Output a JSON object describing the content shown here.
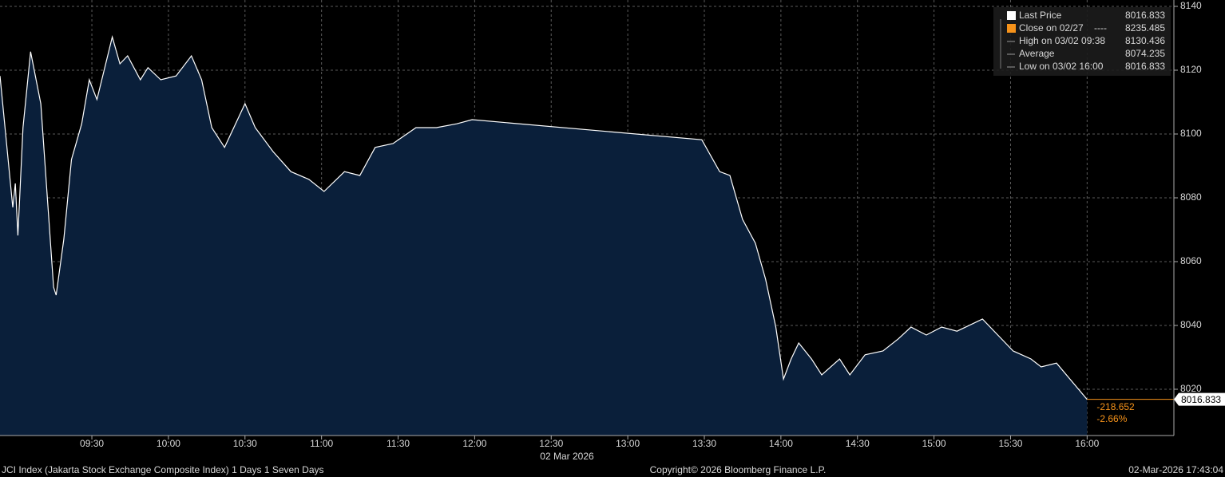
{
  "chart_data": {
    "type": "area",
    "title": "JCI Index (Jakarta Stock Exchange Composite Index) 1 Days 1 Seven Days",
    "credit": "Copyright© 2026 Bloomberg Finance L.P.",
    "timestamp": "02-Mar-2026 17:43:04",
    "x_label": "02 Mar 2026",
    "x": [
      "08:54",
      "08:59",
      "09:00",
      "09:01",
      "09:03",
      "09:06",
      "09:10",
      "09:15",
      "09:16",
      "09:19",
      "09:22",
      "09:26",
      "09:29",
      "09:32",
      "09:38",
      "09:41",
      "09:44",
      "09:49",
      "09:52",
      "09:57",
      "10:03",
      "10:09",
      "10:13",
      "10:17",
      "10:22",
      "10:30",
      "10:34",
      "10:41",
      "10:48",
      "10:55",
      "11:01",
      "11:09",
      "11:15",
      "11:21",
      "11:28",
      "11:37",
      "11:45",
      "11:53",
      "11:59",
      "13:29",
      "13:36",
      "13:40",
      "13:45",
      "13:50",
      "13:54",
      "13:58",
      "14:01",
      "14:04",
      "14:07",
      "14:12",
      "14:16",
      "14:23",
      "14:27",
      "14:33",
      "14:40",
      "14:46",
      "14:51",
      "14:57",
      "15:03",
      "15:09",
      "15:19",
      "15:25",
      "15:31",
      "15:38",
      "15:42",
      "15:48",
      "16:00"
    ],
    "series": [
      {
        "name": "Last Price",
        "color": "#ffffff",
        "fill": "#0a1f3a",
        "values": [
          8118.2,
          8077,
          8084.5,
          8068.2,
          8102,
          8125.8,
          8109.5,
          8052,
          8049.5,
          8067,
          8092,
          8103.2,
          8117,
          8110.8,
          8130.436,
          8122,
          8124.5,
          8117,
          8120.8,
          8117,
          8118.2,
          8124.5,
          8117,
          8102,
          8095.8,
          8109.5,
          8102,
          8094.5,
          8088.2,
          8085.8,
          8082,
          8088.2,
          8087,
          8095.8,
          8097,
          8102,
          8102,
          8103.2,
          8104.5,
          8098.2,
          8088.2,
          8087,
          8073.2,
          8065.8,
          8054.5,
          8039.5,
          8023.2,
          8029.5,
          8034.5,
          8029.5,
          8024.5,
          8029.5,
          8024.5,
          8030.8,
          8032,
          8035.8,
          8039.5,
          8037,
          8039.5,
          8038.2,
          8042,
          8037,
          8032,
          8029.5,
          8027,
          8028.2,
          8016.833
        ]
      }
    ],
    "xlim": [
      "08:54",
      "16:34"
    ],
    "xticks": [
      "09:30",
      "10:00",
      "10:30",
      "11:00",
      "11:30",
      "12:00",
      "12:30",
      "13:00",
      "13:30",
      "14:00",
      "14:30",
      "15:00",
      "15:30",
      "16:00"
    ],
    "ylim": [
      8005.5,
      8142
    ],
    "yticks": [
      8020,
      8040,
      8060,
      8080,
      8100,
      8120,
      8140
    ],
    "grid": true,
    "legend": [
      {
        "name": "Last Price",
        "value": 8016.833,
        "color": "#ffffff"
      },
      {
        "name": "Close on 02/27",
        "value": 8235.485,
        "color": "#f7931a",
        "style": "----"
      },
      {
        "name": "High on 03/02 09:38",
        "value": 8130.436
      },
      {
        "name": "Average",
        "value": 8074.235
      },
      {
        "name": "Low on 03/02 16:00",
        "value": 8016.833
      }
    ],
    "change": -218.652,
    "change_pct": {
      "value": -2.66,
      "label": "-2.66%"
    },
    "change_color": "#f7931a"
  }
}
